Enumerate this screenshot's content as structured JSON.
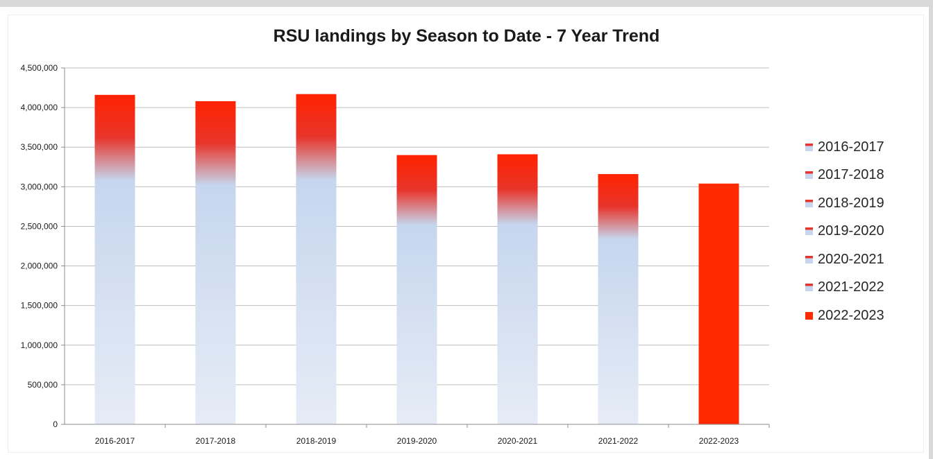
{
  "chart_data": {
    "type": "bar",
    "title": "RSU landings by Season to Date - 7 Year Trend",
    "categories": [
      "2016-2017",
      "2017-2018",
      "2018-2019",
      "2019-2020",
      "2020-2021",
      "2021-2022",
      "2022-2023"
    ],
    "series": [
      {
        "name": "2016-2017",
        "values": [
          4160000,
          null,
          null,
          null,
          null,
          null,
          null
        ]
      },
      {
        "name": "2017-2018",
        "values": [
          null,
          4080000,
          null,
          null,
          null,
          null,
          null
        ]
      },
      {
        "name": "2018-2019",
        "values": [
          null,
          null,
          4170000,
          null,
          null,
          null,
          null
        ]
      },
      {
        "name": "2019-2020",
        "values": [
          null,
          null,
          null,
          3400000,
          null,
          null,
          null
        ]
      },
      {
        "name": "2020-2021",
        "values": [
          null,
          null,
          null,
          null,
          3410000,
          null,
          null
        ]
      },
      {
        "name": "2021-2022",
        "values": [
          null,
          null,
          null,
          null,
          null,
          3160000,
          null
        ]
      },
      {
        "name": "2022-2023",
        "values": [
          null,
          null,
          null,
          null,
          null,
          null,
          3040000
        ]
      }
    ],
    "ylim": [
      0,
      4500000
    ],
    "yticks": [
      "0",
      "500,000",
      "1,000,000",
      "1,500,000",
      "2,000,000",
      "2,500,000",
      "3,000,000",
      "3,500,000",
      "4,000,000",
      "4,500,000"
    ],
    "grid": true,
    "legend_position": "right",
    "colors": {
      "gradient_top": "#ff2200",
      "gradient_mid": "#e8352b",
      "gradient_low": "#c6d6ee",
      "gradient_bottom": "#e6ecf6",
      "current_season": "#ff2a00",
      "gridline": "#bfbfbf",
      "axis": "#8c8c8c"
    }
  }
}
